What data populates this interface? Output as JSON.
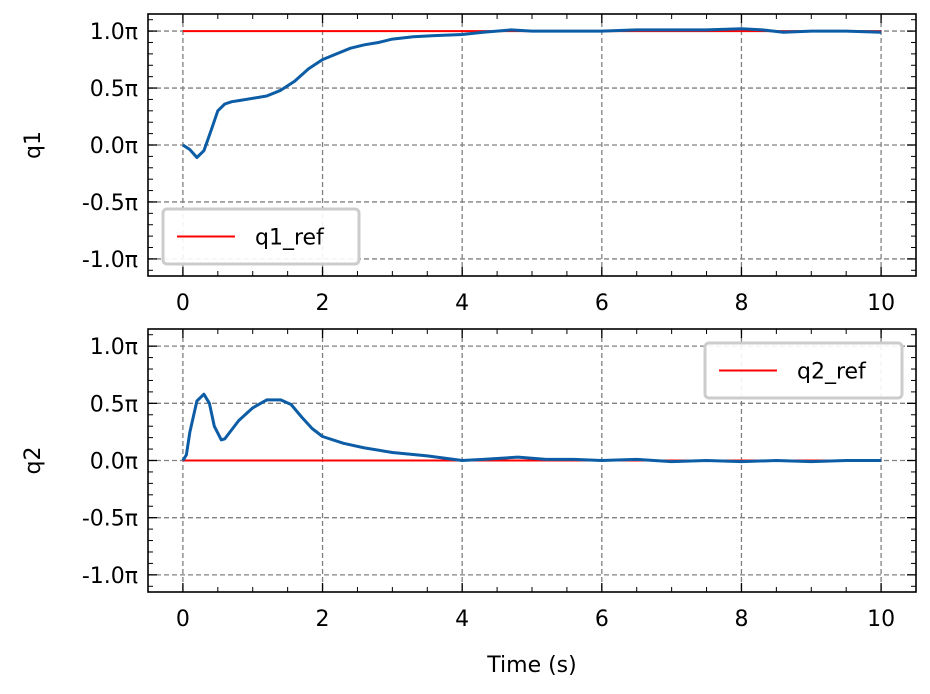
{
  "chart_data": [
    {
      "type": "line",
      "ylabel": "q1",
      "xlim": [
        -0.5,
        10.5
      ],
      "ylim": [
        -1.15,
        1.15
      ],
      "xticks": [
        0,
        2,
        4,
        6,
        8,
        10
      ],
      "xtick_labels": [
        "0",
        "2",
        "4",
        "6",
        "8",
        "10"
      ],
      "yticks": [
        1.0,
        0.5,
        0.0,
        -0.5,
        -1.0
      ],
      "ytick_labels": [
        "1.0π",
        "0.5π",
        "0.0π",
        "-0.5π",
        "-1.0π"
      ],
      "grid": true,
      "legend": {
        "position": "lower-left",
        "entries": [
          "q1_ref"
        ]
      },
      "series": [
        {
          "name": "q1_ref",
          "color": "#ff0000",
          "x": [
            0,
            10
          ],
          "y": [
            1.0,
            1.0
          ]
        },
        {
          "color": "#0c5da5",
          "x": [
            0,
            0.1,
            0.2,
            0.3,
            0.4,
            0.5,
            0.6,
            0.7,
            0.8,
            1.0,
            1.2,
            1.4,
            1.6,
            1.8,
            2.0,
            2.2,
            2.4,
            2.6,
            2.8,
            3.0,
            3.3,
            3.6,
            4.0,
            4.3,
            4.7,
            5.0,
            5.5,
            6.0,
            6.5,
            7.0,
            7.5,
            8.0,
            8.3,
            8.6,
            9.0,
            9.5,
            10.0
          ],
          "y": [
            0.0,
            -0.04,
            -0.11,
            -0.05,
            0.12,
            0.3,
            0.36,
            0.38,
            0.39,
            0.41,
            0.43,
            0.48,
            0.56,
            0.67,
            0.75,
            0.8,
            0.85,
            0.88,
            0.9,
            0.93,
            0.95,
            0.96,
            0.97,
            0.99,
            1.01,
            1.0,
            1.0,
            1.0,
            1.01,
            1.01,
            1.01,
            1.02,
            1.01,
            0.99,
            1.0,
            1.0,
            0.99
          ]
        }
      ]
    },
    {
      "type": "line",
      "ylabel": "q2",
      "xlabel": "Time (s)",
      "xlim": [
        -0.5,
        10.5
      ],
      "ylim": [
        -1.15,
        1.15
      ],
      "xticks": [
        0,
        2,
        4,
        6,
        8,
        10
      ],
      "xtick_labels": [
        "0",
        "2",
        "4",
        "6",
        "8",
        "10"
      ],
      "yticks": [
        1.0,
        0.5,
        0.0,
        -0.5,
        -1.0
      ],
      "ytick_labels": [
        "1.0π",
        "0.5π",
        "0.0π",
        "-0.5π",
        "-1.0π"
      ],
      "grid": true,
      "legend": {
        "position": "upper-right",
        "entries": [
          "q2_ref"
        ]
      },
      "series": [
        {
          "name": "q2_ref",
          "color": "#ff0000",
          "x": [
            0,
            10
          ],
          "y": [
            0.0,
            0.0
          ]
        },
        {
          "color": "#0c5da5",
          "x": [
            0,
            0.05,
            0.1,
            0.2,
            0.3,
            0.38,
            0.45,
            0.55,
            0.6,
            0.7,
            0.8,
            1.0,
            1.2,
            1.4,
            1.55,
            1.7,
            1.85,
            2.0,
            2.3,
            2.6,
            3.0,
            3.5,
            4.0,
            4.3,
            4.8,
            5.2,
            5.6,
            6.0,
            6.5,
            7.0,
            7.5,
            8.0,
            8.5,
            9.0,
            9.5,
            10.0
          ],
          "y": [
            0.0,
            0.05,
            0.25,
            0.52,
            0.58,
            0.5,
            0.3,
            0.18,
            0.19,
            0.27,
            0.35,
            0.46,
            0.53,
            0.53,
            0.49,
            0.38,
            0.28,
            0.21,
            0.15,
            0.11,
            0.07,
            0.04,
            0.0,
            0.01,
            0.03,
            0.01,
            0.01,
            0.0,
            0.01,
            -0.01,
            0.0,
            -0.01,
            0.0,
            -0.01,
            0.0,
            0.0
          ]
        }
      ]
    }
  ]
}
